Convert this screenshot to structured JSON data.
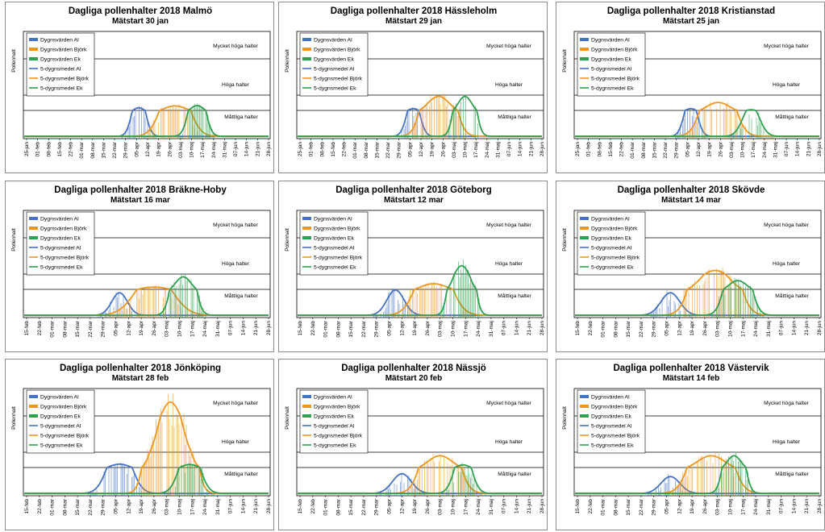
{
  "colors": {
    "al": "#4472c4",
    "bjork": "#f0961e",
    "ek": "#2ea04e",
    "level_line": "#000000"
  },
  "chart_data": [
    {
      "type": "bar",
      "title": "Dagliga pollenhalter 2018 Malmö",
      "subtitle": "Mätstart 30 jan",
      "ylabel": "Pollenhalt",
      "legend": [
        "Dygnsvärden Al",
        "Dygnsvärden Björk",
        "Dygnsvärden Ek",
        "5-dygnsmedel Al",
        "5-dygnsmedel Björk",
        "5-dygnsmedel Ek"
      ],
      "legend_position": "top-left",
      "levels": [
        {
          "label": "Mycket höga halter",
          "value": 1000
        },
        {
          "label": "Höga halter",
          "value": 250
        },
        {
          "label": "Måttliga halter",
          "value": 50
        }
      ],
      "x_ticks": [
        "25-jan",
        "01-feb",
        "08-feb",
        "15-feb",
        "22-feb",
        "01-mar",
        "08-mar",
        "15-mar",
        "22-mar",
        "29-mar",
        "05-apr",
        "12-apr",
        "19-apr",
        "26-apr",
        "03-maj",
        "10-maj",
        "17-maj",
        "24-maj",
        "31-maj",
        "07-jun",
        "14-jun",
        "21-jun",
        "28-jun"
      ],
      "series_peaks": [
        {
          "name": "Al",
          "peak_day": 10.2,
          "peak": 80,
          "spread": 0.45
        },
        {
          "name": "Björk",
          "peak_day": 13.5,
          "peak": 105,
          "spread": 0.9
        },
        {
          "name": "Ek",
          "peak_day": 15.5,
          "peak": 110,
          "spread": 0.5
        }
      ]
    },
    {
      "type": "bar",
      "title": "Dagliga pollenhalter 2018 Hässleholm",
      "subtitle": "Mätstart 29 jan",
      "ylabel": "Pollenhalt",
      "legend": [
        "Dygnsvärden Al",
        "Dygnsvärden Björk",
        "Dygnsvärden Ek",
        "5-dygnsmedel Al",
        "5-dygnsmedel Björk",
        "5-dygnsmedel Ek"
      ],
      "legend_position": "top-left",
      "levels": [
        {
          "label": "Mycket höga halter",
          "value": 1000
        },
        {
          "label": "Höga halter",
          "value": 250
        },
        {
          "label": "Måttliga halter",
          "value": 50
        }
      ],
      "x_ticks": [
        "25-jan",
        "01-feb",
        "08-feb",
        "15-feb",
        "22-feb",
        "01-mar",
        "08-mar",
        "15-mar",
        "22-mar",
        "29-mar",
        "05-apr",
        "12-apr",
        "19-apr",
        "26-apr",
        "03-maj",
        "10-maj",
        "17-maj",
        "24-maj",
        "31-maj",
        "07-jun",
        "14-jun",
        "21-jun",
        "28-jun"
      ],
      "series_peaks": [
        {
          "name": "Al",
          "peak_day": 10.3,
          "peak": 70,
          "spread": 0.45
        },
        {
          "name": "Björk",
          "peak_day": 12.6,
          "peak": 230,
          "spread": 0.8
        },
        {
          "name": "Ek",
          "peak_day": 15.0,
          "peak": 230,
          "spread": 0.5
        }
      ]
    },
    {
      "type": "bar",
      "title": "Dagliga pollenhalter 2018 Kristianstad",
      "subtitle": "Mätstart 25 jan",
      "ylabel": "Pollenhalt",
      "legend": [
        "Dygnsvärden Al",
        "Dygnsvärden Björk",
        "Dygnsvärden Ek",
        "5-dygnsmedel Al",
        "5-dygnsmedel Björk",
        "5-dygnsmedel Ek"
      ],
      "legend_position": "top-left",
      "levels": [
        {
          "label": "Mycket höga halter",
          "value": 1000
        },
        {
          "label": "Höga halter",
          "value": 250
        },
        {
          "label": "Måttliga halter",
          "value": 50
        }
      ],
      "x_ticks": [
        "25-jan",
        "01-feb",
        "08-feb",
        "15-feb",
        "22-feb",
        "01-mar",
        "08-mar",
        "15-mar",
        "22-mar",
        "29-mar",
        "05-apr",
        "12-apr",
        "19-apr",
        "26-apr",
        "03-maj",
        "10-maj",
        "17-maj",
        "24-maj",
        "31-maj",
        "07-jun",
        "14-jun",
        "21-jun",
        "28-jun"
      ],
      "series_peaks": [
        {
          "name": "Al",
          "peak_day": 10.3,
          "peak": 70,
          "spread": 0.45
        },
        {
          "name": "Björk",
          "peak_day": 12.8,
          "peak": 150,
          "spread": 0.9
        },
        {
          "name": "Ek",
          "peak_day": 15.8,
          "peak": 55,
          "spread": 0.6
        }
      ]
    },
    {
      "type": "bar",
      "title": "Dagliga pollenhalter 2018 Bräkne-Hoby",
      "subtitle": "Mätstart 16 mar",
      "ylabel": "Pollenhalt",
      "legend": [
        "Dygnsvärden Al",
        "Dygnsvärden Björk",
        "Dygnsvärden Ek",
        "5-dygnsmedel Al",
        "5-dygnsmedel Björk",
        "5-dygnsmedel Ek"
      ],
      "legend_position": "top-left",
      "levels": [
        {
          "label": "Mycket höga halter",
          "value": 1000
        },
        {
          "label": "Höga halter",
          "value": 250
        },
        {
          "label": "Måttliga halter",
          "value": 50
        }
      ],
      "x_ticks": [
        "15-feb",
        "22-feb",
        "01-mar",
        "08-mar",
        "15-mar",
        "22-mar",
        "29-mar",
        "05-apr",
        "12-apr",
        "19-apr",
        "26-apr",
        "03-maj",
        "10-maj",
        "17-maj",
        "24-maj",
        "31-maj",
        "07-jun",
        "14-jun",
        "21-jun",
        "28-jun"
      ],
      "series_peaks": [
        {
          "name": "Al",
          "peak_day": 7.3,
          "peak": 40,
          "spread": 0.5
        },
        {
          "name": "Björk",
          "peak_day": 10.0,
          "peak": 75,
          "spread": 1.1
        },
        {
          "name": "Ek",
          "peak_day": 12.3,
          "peak": 210,
          "spread": 0.5
        }
      ]
    },
    {
      "type": "bar",
      "title": "Dagliga pollenhalter 2018 Göteborg",
      "subtitle": "Mätstart 12 mar",
      "ylabel": "Pollenhalt",
      "legend": [
        "Dygnsvärden Al",
        "Dygnsvärden Björk",
        "Dygnsvärden Ek",
        "5-dygnsmedel Al",
        "5-dygnsmedel Björk",
        "5-dygnsmedel Ek"
      ],
      "legend_position": "top-left",
      "levels": [
        {
          "label": "Mycket höga halter",
          "value": 1000
        },
        {
          "label": "Höga halter",
          "value": 250
        },
        {
          "label": "Måttliga halter",
          "value": 50
        }
      ],
      "x_ticks": [
        "15-feb",
        "22-feb",
        "01-mar",
        "08-mar",
        "15-mar",
        "22-mar",
        "29-mar",
        "05-apr",
        "12-apr",
        "19-apr",
        "26-apr",
        "03-maj",
        "10-maj",
        "17-maj",
        "24-maj",
        "31-maj",
        "07-jun",
        "14-jun",
        "21-jun",
        "28-jun"
      ],
      "series_peaks": [
        {
          "name": "Al",
          "peak_day": 7.5,
          "peak": 45,
          "spread": 0.55
        },
        {
          "name": "Björk",
          "peak_day": 10.5,
          "peak": 120,
          "spread": 0.9
        },
        {
          "name": "Ek",
          "peak_day": 12.7,
          "peak": 420,
          "spread": 0.45
        }
      ]
    },
    {
      "type": "bar",
      "title": "Dagliga pollenhalter 2018 Skövde",
      "subtitle": "Mätstart 14 mar",
      "ylabel": "Pollenhalt",
      "legend": [
        "Dygnsvärden Al",
        "Dygnsvärden Björk",
        "Dygnsvärden Ek",
        "5-dygnsmedel Al",
        "5-dygnsmedel Björk",
        "5-dygnsmedel Ek"
      ],
      "legend_position": "top-left",
      "levels": [
        {
          "label": "Mycket höga halter",
          "value": 1000
        },
        {
          "label": "Höga halter",
          "value": 250
        },
        {
          "label": "Måttliga halter",
          "value": 50
        }
      ],
      "x_ticks": [
        "15-feb",
        "22-feb",
        "01-mar",
        "08-mar",
        "15-mar",
        "22-mar",
        "29-mar",
        "05-apr",
        "12-apr",
        "19-apr",
        "26-apr",
        "03-maj",
        "10-maj",
        "17-maj",
        "24-maj",
        "31-maj",
        "07-jun",
        "14-jun",
        "21-jun",
        "28-jun"
      ],
      "series_peaks": [
        {
          "name": "Al",
          "peak_day": 7.3,
          "peak": 40,
          "spread": 0.6
        },
        {
          "name": "Björk",
          "peak_day": 10.8,
          "peak": 320,
          "spread": 0.9
        },
        {
          "name": "Ek",
          "peak_day": 12.6,
          "peak": 160,
          "spread": 0.6
        }
      ]
    },
    {
      "type": "bar",
      "title": "Dagliga pollenhalter 2018 Jönköping",
      "subtitle": "Mätstart 28 feb",
      "ylabel": "Pollenhalt",
      "legend": [
        "Dygnsvärden Al",
        "Dygnsvärden Björk",
        "Dygnsvärden Ek",
        "5-dygnsmedel Al",
        "5-dygnsmedel Björk",
        "5-dygnsmedel Ek"
      ],
      "legend_position": "top-left",
      "levels": [
        {
          "label": "Mycket höga halter",
          "value": 1000
        },
        {
          "label": "Höga halter",
          "value": 250
        },
        {
          "label": "Måttliga halter",
          "value": 50
        }
      ],
      "x_ticks": [
        "15-feb",
        "22-feb",
        "01-mar",
        "08-mar",
        "15-mar",
        "22-mar",
        "29-mar",
        "05-apr",
        "12-apr",
        "19-apr",
        "26-apr",
        "03-maj",
        "10-maj",
        "17-maj",
        "24-maj",
        "31-maj",
        "07-jun",
        "14-jun",
        "21-jun",
        "28-jun"
      ],
      "series_peaks": [
        {
          "name": "Al",
          "peak_day": 7.3,
          "peak": 90,
          "spread": 0.7
        },
        {
          "name": "Björk",
          "peak_day": 11.3,
          "peak": 1500,
          "spread": 0.7
        },
        {
          "name": "Ek",
          "peak_day": 12.8,
          "peak": 85,
          "spread": 0.6
        }
      ]
    },
    {
      "type": "bar",
      "title": "Dagliga pollenhalter 2018 Nässjö",
      "subtitle": "Mätstart 20 feb",
      "ylabel": "Pollenhalt",
      "legend": [
        "Dygnsvärden Al",
        "Dygnsvärden Björk",
        "Dygnsvärden Ek",
        "5-dygnsmedel Al",
        "5-dygnsmedel Björk",
        "5-dygnsmedel Ek"
      ],
      "legend_position": "top-left",
      "levels": [
        {
          "label": "Mycket höga halter",
          "value": 1000
        },
        {
          "label": "Höga halter",
          "value": 250
        },
        {
          "label": "Måttliga halter",
          "value": 50
        }
      ],
      "x_ticks": [
        "15-feb",
        "22-feb",
        "01-mar",
        "08-mar",
        "15-mar",
        "22-mar",
        "29-mar",
        "05-apr",
        "12-apr",
        "19-apr",
        "26-apr",
        "03-maj",
        "10-maj",
        "17-maj",
        "24-maj",
        "31-maj",
        "07-jun",
        "14-jun",
        "21-jun",
        "28-jun"
      ],
      "series_peaks": [
        {
          "name": "Al",
          "peak_day": 8.0,
          "peak": 35,
          "spread": 0.6
        },
        {
          "name": "Björk",
          "peak_day": 11.0,
          "peak": 200,
          "spread": 0.8
        },
        {
          "name": "Ek",
          "peak_day": 12.8,
          "peak": 80,
          "spread": 0.5
        }
      ]
    },
    {
      "type": "bar",
      "title": "Dagliga pollenhalter 2018 Västervik",
      "subtitle": "Mätstart 14 feb",
      "ylabel": "Pollenhalt",
      "legend": [
        "Dygnsvärden Al",
        "Dygnsvärden Björk",
        "Dygnsvärden Ek",
        "5-dygnsmedel Al",
        "5-dygnsmedel Björk",
        "5-dygnsmedel Ek"
      ],
      "legend_position": "top-left",
      "levels": [
        {
          "label": "Mycket höga halter",
          "value": 1000
        },
        {
          "label": "Höga halter",
          "value": 250
        },
        {
          "label": "Måttliga halter",
          "value": 50
        }
      ],
      "x_ticks": [
        "15-feb",
        "22-feb",
        "01-mar",
        "08-mar",
        "15-mar",
        "22-mar",
        "29-mar",
        "05-apr",
        "12-apr",
        "19-apr",
        "26-apr",
        "03-maj",
        "10-maj",
        "17-maj",
        "24-maj",
        "31-maj",
        "07-jun",
        "14-jun",
        "21-jun",
        "28-jun"
      ],
      "series_peaks": [
        {
          "name": "Al",
          "peak_day": 7.3,
          "peak": 30,
          "spread": 0.6
        },
        {
          "name": "Björk",
          "peak_day": 10.5,
          "peak": 200,
          "spread": 0.9
        },
        {
          "name": "Ek",
          "peak_day": 12.3,
          "peak": 200,
          "spread": 0.45
        }
      ]
    }
  ]
}
